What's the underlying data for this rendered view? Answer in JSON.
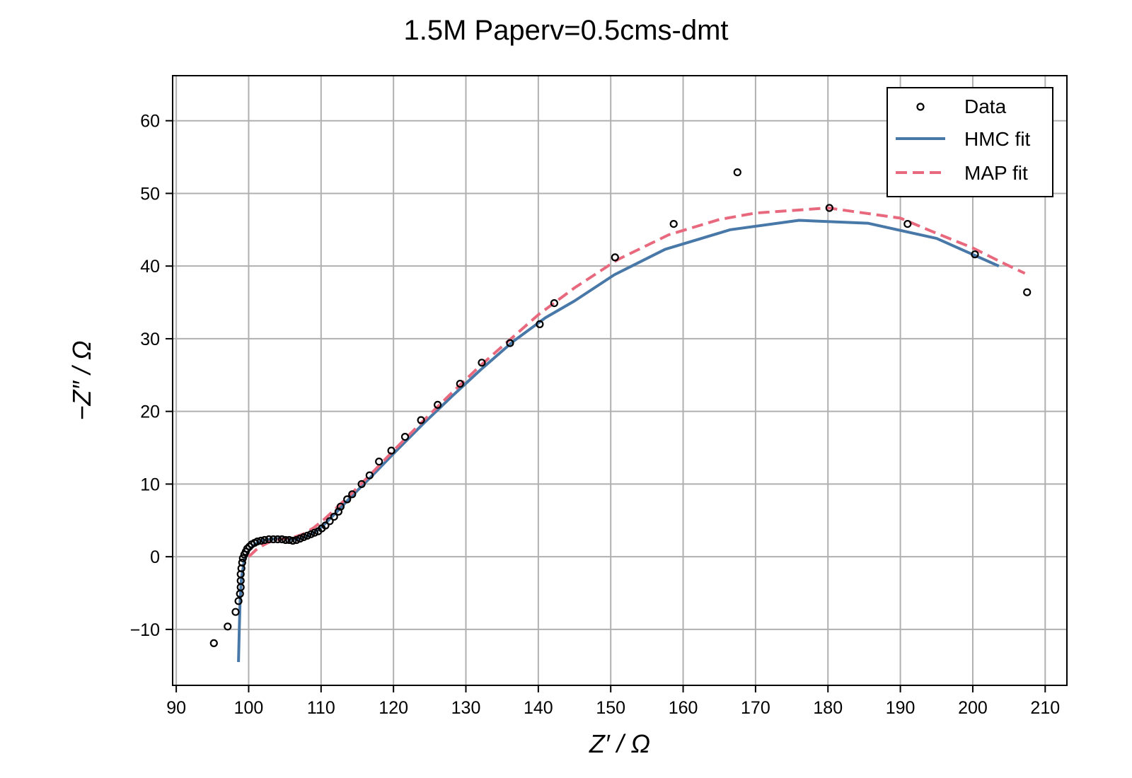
{
  "chart_data": {
    "type": "scatter",
    "title": "1.5M Paperv=0.5cms-dmt",
    "xlabel": "Z′ / Ω",
    "ylabel": "−Z″ / Ω",
    "xlim": [
      89.5,
      213
    ],
    "ylim": [
      -17.7,
      66.2
    ],
    "xticks": [
      90,
      100,
      110,
      120,
      130,
      140,
      150,
      160,
      170,
      180,
      190,
      200,
      210
    ],
    "yticks": [
      -10,
      0,
      10,
      20,
      30,
      40,
      50,
      60
    ],
    "xtick_labels": [
      "90",
      "100",
      "110",
      "120",
      "130",
      "140",
      "150",
      "160",
      "170",
      "180",
      "190",
      "200",
      "210"
    ],
    "ytick_labels": [
      "−10",
      "0",
      "10",
      "20",
      "30",
      "40",
      "50",
      "60"
    ],
    "grid": true,
    "legend_position": "top-right",
    "series": [
      {
        "name": "Data",
        "kind": "scatter",
        "color": "#000000",
        "points": [
          [
            95.2,
            -11.9
          ],
          [
            97.1,
            -9.6
          ],
          [
            98.2,
            -7.6
          ],
          [
            98.6,
            -6.1
          ],
          [
            98.8,
            -5.1
          ],
          [
            98.9,
            -4.2
          ],
          [
            98.9,
            -3.3
          ],
          [
            98.9,
            -2.4
          ],
          [
            99.0,
            -1.6
          ],
          [
            99.1,
            -0.8
          ],
          [
            99.2,
            -0.2
          ],
          [
            99.4,
            0.3
          ],
          [
            99.6,
            0.7
          ],
          [
            99.8,
            1.1
          ],
          [
            100.1,
            1.4
          ],
          [
            100.4,
            1.7
          ],
          [
            100.8,
            1.9
          ],
          [
            101.2,
            2.1
          ],
          [
            101.7,
            2.2
          ],
          [
            102.2,
            2.3
          ],
          [
            102.8,
            2.4
          ],
          [
            103.4,
            2.4
          ],
          [
            104.0,
            2.4
          ],
          [
            104.6,
            2.4
          ],
          [
            105.1,
            2.3
          ],
          [
            105.6,
            2.3
          ],
          [
            106.1,
            2.2
          ],
          [
            106.6,
            2.3
          ],
          [
            107.1,
            2.5
          ],
          [
            107.6,
            2.7
          ],
          [
            108.1,
            2.9
          ],
          [
            108.6,
            3.1
          ],
          [
            109.1,
            3.3
          ],
          [
            109.6,
            3.5
          ],
          [
            110.1,
            3.9
          ],
          [
            110.6,
            4.3
          ],
          [
            111.2,
            4.9
          ],
          [
            111.8,
            5.5
          ],
          [
            112.4,
            6.2
          ],
          [
            112.7,
            6.9
          ],
          [
            113.6,
            7.9
          ],
          [
            114.3,
            8.6
          ],
          [
            115.6,
            10.0
          ],
          [
            116.7,
            11.2
          ],
          [
            118.0,
            13.1
          ],
          [
            119.7,
            14.6
          ],
          [
            121.6,
            16.5
          ],
          [
            123.8,
            18.8
          ],
          [
            126.1,
            20.9
          ],
          [
            129.2,
            23.8
          ],
          [
            132.2,
            26.7
          ],
          [
            136.1,
            29.4
          ],
          [
            140.2,
            32.0
          ],
          [
            142.2,
            34.9
          ],
          [
            150.6,
            41.2
          ],
          [
            158.7,
            45.8
          ],
          [
            167.5,
            52.9
          ],
          [
            180.2,
            48.0
          ],
          [
            191.0,
            45.8
          ],
          [
            200.3,
            41.6
          ],
          [
            207.5,
            36.4
          ]
        ]
      },
      {
        "name": "HMC fit",
        "kind": "line",
        "color": "#4878A8",
        "points": [
          [
            98.6,
            -14.5
          ],
          [
            98.7,
            -10.0
          ],
          [
            98.8,
            -6.5
          ],
          [
            99.0,
            -3.0
          ],
          [
            99.4,
            -0.5
          ],
          [
            100.0,
            0.8
          ],
          [
            100.8,
            1.7
          ],
          [
            101.8,
            2.2
          ],
          [
            103.0,
            2.4
          ],
          [
            104.3,
            2.5
          ],
          [
            105.5,
            2.4
          ],
          [
            106.8,
            2.4
          ],
          [
            108.0,
            2.8
          ],
          [
            109.2,
            3.4
          ],
          [
            110.4,
            4.4
          ],
          [
            112.0,
            6.0
          ],
          [
            114.0,
            8.1
          ],
          [
            117.0,
            11.1
          ],
          [
            120.0,
            14.2
          ],
          [
            124.0,
            18.2
          ],
          [
            128.0,
            22.0
          ],
          [
            132.0,
            25.7
          ],
          [
            136.5,
            29.6
          ],
          [
            141.0,
            32.9
          ],
          [
            145.0,
            35.2
          ],
          [
            150.5,
            38.8
          ],
          [
            157.5,
            42.3
          ],
          [
            166.5,
            45.0
          ],
          [
            176.0,
            46.3
          ],
          [
            185.5,
            45.9
          ],
          [
            195.0,
            43.8
          ],
          [
            203.6,
            40.0
          ]
        ]
      },
      {
        "name": "MAP fit",
        "kind": "line",
        "dashed": true,
        "color": "#E8697D",
        "points": [
          [
            100.0,
            0.0
          ],
          [
            101.3,
            1.2
          ],
          [
            102.8,
            2.0
          ],
          [
            104.3,
            2.4
          ],
          [
            106.0,
            2.6
          ],
          [
            107.5,
            3.1
          ],
          [
            109.0,
            4.0
          ],
          [
            110.5,
            5.2
          ],
          [
            112.0,
            6.6
          ],
          [
            114.0,
            8.5
          ],
          [
            117.0,
            11.5
          ],
          [
            120.0,
            14.6
          ],
          [
            124.0,
            18.6
          ],
          [
            128.0,
            22.5
          ],
          [
            132.0,
            26.3
          ],
          [
            136.0,
            29.8
          ],
          [
            140.0,
            33.3
          ],
          [
            145.0,
            37.0
          ],
          [
            151.0,
            40.9
          ],
          [
            158.0,
            44.3
          ],
          [
            165.0,
            46.4
          ],
          [
            170.0,
            47.3
          ],
          [
            180.0,
            48.0
          ],
          [
            185.0,
            47.3
          ],
          [
            190.0,
            46.6
          ],
          [
            195.0,
            44.5
          ],
          [
            200.0,
            42.5
          ],
          [
            204.0,
            40.5
          ],
          [
            207.2,
            39.0
          ]
        ]
      }
    ]
  }
}
